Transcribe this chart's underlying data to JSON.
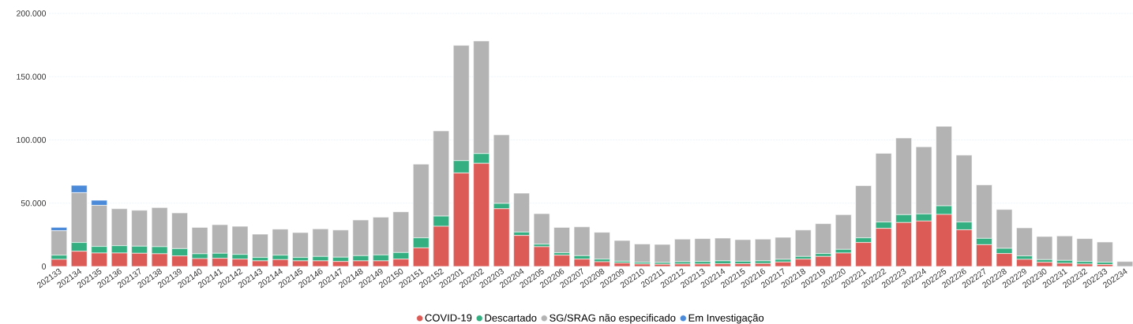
{
  "chart_data": {
    "type": "bar",
    "stacked": true,
    "categories": [
      "202133",
      "202134",
      "202135",
      "202136",
      "202137",
      "202138",
      "202139",
      "202140",
      "202141",
      "202142",
      "202143",
      "202144",
      "202145",
      "202146",
      "202147",
      "202148",
      "202149",
      "202150",
      "202151",
      "202152",
      "202201",
      "202202",
      "202203",
      "202204",
      "202205",
      "202206",
      "202207",
      "202208",
      "202209",
      "202210",
      "202211",
      "202212",
      "202213",
      "202214",
      "202215",
      "202216",
      "202217",
      "202218",
      "202219",
      "202220",
      "202221",
      "202222",
      "202223",
      "202224",
      "202225",
      "202226",
      "202227",
      "202228",
      "202229",
      "202230",
      "202231",
      "202232",
      "202233",
      "202234"
    ],
    "series": [
      {
        "name": "COVID-19",
        "color": "#dd5b56",
        "values": [
          5600,
          12000,
          10600,
          10600,
          10400,
          10000,
          8300,
          6200,
          6400,
          5800,
          4400,
          5400,
          4400,
          4400,
          3900,
          4400,
          4400,
          5800,
          14700,
          31700,
          73900,
          81500,
          45600,
          24500,
          15600,
          8900,
          5800,
          3700,
          2700,
          1900,
          1700,
          1900,
          1900,
          2100,
          2100,
          2300,
          3500,
          5800,
          7900,
          10600,
          18900,
          30100,
          34700,
          35900,
          41100,
          29000,
          17200,
          10200,
          5600,
          3300,
          2500,
          1900,
          1500,
          null
        ]
      },
      {
        "name": "Descartado",
        "color": "#34af81",
        "values": [
          3300,
          6900,
          5200,
          5800,
          5600,
          5600,
          5800,
          3800,
          4000,
          3700,
          2700,
          3500,
          2700,
          3500,
          3400,
          4100,
          4700,
          5200,
          7900,
          8100,
          9700,
          7700,
          4200,
          2700,
          2000,
          1900,
          2700,
          2100,
          1400,
          1400,
          1400,
          1800,
          2000,
          2300,
          2000,
          2100,
          2100,
          2100,
          2300,
          2900,
          3700,
          5000,
          6200,
          5600,
          6800,
          6100,
          5000,
          4100,
          2700,
          2100,
          2300,
          2000,
          1800,
          null
        ]
      },
      {
        "name": "SG/SRAG não especificado",
        "color": "#b3b3b3",
        "values": [
          19300,
          39400,
          32500,
          29200,
          28400,
          30900,
          28200,
          20900,
          22600,
          22200,
          18400,
          20600,
          19700,
          21800,
          21500,
          28200,
          29900,
          32200,
          58300,
          67300,
          91100,
          89000,
          54200,
          30700,
          24100,
          20100,
          22800,
          21200,
          16400,
          14500,
          14300,
          17900,
          18100,
          18000,
          17100,
          17200,
          17400,
          20900,
          23600,
          27400,
          41300,
          54300,
          60600,
          53100,
          62900,
          52900,
          42300,
          30700,
          22200,
          18300,
          19300,
          18100,
          16000,
          3900
        ]
      },
      {
        "name": "Em Investigação",
        "color": "#4a8ad9",
        "values": [
          2700,
          5800,
          4000,
          null,
          null,
          null,
          null,
          null,
          null,
          null,
          null,
          null,
          null,
          null,
          null,
          null,
          null,
          null,
          null,
          null,
          null,
          null,
          null,
          null,
          null,
          null,
          null,
          null,
          null,
          null,
          null,
          null,
          null,
          null,
          null,
          null,
          null,
          null,
          null,
          null,
          null,
          null,
          null,
          null,
          null,
          null,
          null,
          null,
          null,
          null,
          null,
          null,
          null,
          null
        ]
      }
    ],
    "ylim": [
      0,
      200000
    ],
    "yticks": [
      {
        "value": 0,
        "label": "0"
      },
      {
        "value": 50000,
        "label": "50.000"
      },
      {
        "value": 100000,
        "label": "100.000"
      },
      {
        "value": 150000,
        "label": "150.000"
      },
      {
        "value": 200000,
        "label": "200.000"
      }
    ],
    "grid": "y",
    "legend": "bottom",
    "marker": "circle"
  }
}
